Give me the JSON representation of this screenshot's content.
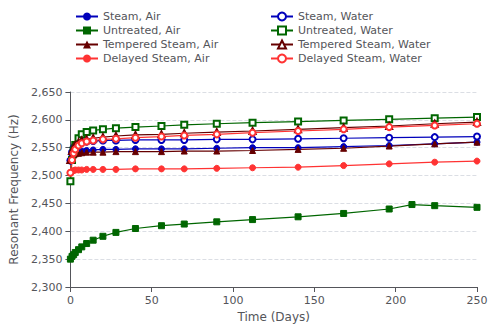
{
  "chart_data": {
    "type": "line",
    "x_label": "Time (Days)",
    "y_label": "Resonant Frequency (Hz)",
    "xlim": [
      0,
      250
    ],
    "ylim": [
      2300,
      2650
    ],
    "xticks": [
      0,
      50,
      100,
      150,
      200,
      250
    ],
    "yticks": [
      2300,
      2350,
      2400,
      2450,
      2500,
      2550,
      2600,
      2650
    ],
    "grid": true,
    "legend": "top",
    "series": [
      {
        "name": "Steam, Air",
        "color": "#0000bb",
        "marker": "circle",
        "x": [
          0,
          1,
          2,
          3,
          5,
          7,
          10,
          14,
          20,
          28,
          40,
          56,
          70,
          90,
          112,
          140,
          168,
          196,
          224,
          250
        ],
        "values": [
          2527,
          2535,
          2538,
          2540,
          2542,
          2544,
          2545,
          2546,
          2547,
          2547,
          2548,
          2548,
          2548,
          2549,
          2550,
          2550,
          2552,
          2554,
          2557,
          2560
        ]
      },
      {
        "name": "Untreated, Air",
        "color": "#006600",
        "marker": "square",
        "x": [
          0,
          1,
          2,
          3,
          5,
          7,
          10,
          14,
          20,
          28,
          40,
          56,
          70,
          90,
          112,
          140,
          168,
          196,
          210,
          224,
          250
        ],
        "values": [
          2350,
          2355,
          2358,
          2362,
          2367,
          2372,
          2378,
          2384,
          2391,
          2398,
          2405,
          2410,
          2413,
          2417,
          2421,
          2426,
          2432,
          2440,
          2448,
          2446,
          2443
        ]
      },
      {
        "name": "Tempered Steam, Air",
        "color": "#660000",
        "marker": "triangle",
        "x": [
          0,
          1,
          2,
          3,
          5,
          7,
          10,
          14,
          20,
          28,
          40,
          56,
          70,
          90,
          112,
          140,
          168,
          196,
          224,
          250
        ],
        "values": [
          2528,
          2534,
          2537,
          2539,
          2540,
          2541,
          2542,
          2542,
          2542,
          2543,
          2543,
          2543,
          2544,
          2544,
          2545,
          2547,
          2549,
          2553,
          2557,
          2560
        ]
      },
      {
        "name": "Delayed Steam, Air",
        "color": "#ff3333",
        "marker": "circle",
        "x": [
          0,
          1,
          2,
          3,
          5,
          7,
          10,
          14,
          20,
          28,
          40,
          56,
          70,
          90,
          112,
          140,
          168,
          196,
          224,
          250
        ],
        "values": [
          2505,
          2508,
          2509,
          2510,
          2510,
          2510,
          2511,
          2511,
          2511,
          2511,
          2512,
          2512,
          2512,
          2513,
          2514,
          2515,
          2518,
          2521,
          2524,
          2526
        ]
      },
      {
        "name": "Steam, Water",
        "color": "#0000bb",
        "marker": "circle_open",
        "x": [
          0,
          1,
          2,
          3,
          5,
          7,
          10,
          14,
          20,
          28,
          40,
          56,
          70,
          90,
          112,
          140,
          168,
          196,
          224,
          250
        ],
        "values": [
          2527,
          2542,
          2550,
          2554,
          2558,
          2560,
          2561,
          2562,
          2563,
          2563,
          2564,
          2564,
          2564,
          2565,
          2565,
          2566,
          2567,
          2568,
          2569,
          2570
        ]
      },
      {
        "name": "Untreated, Water",
        "color": "#006600",
        "marker": "square_open",
        "x": [
          0,
          1,
          2,
          3,
          5,
          7,
          10,
          14,
          20,
          28,
          40,
          56,
          70,
          90,
          112,
          140,
          168,
          196,
          224,
          250
        ],
        "values": [
          2490,
          2528,
          2545,
          2555,
          2567,
          2574,
          2578,
          2581,
          2583,
          2585,
          2587,
          2589,
          2591,
          2593,
          2595,
          2597,
          2599,
          2601,
          2603,
          2605
        ]
      },
      {
        "name": "Tempered Steam, Water",
        "color": "#660000",
        "marker": "triangle_open",
        "x": [
          0,
          1,
          2,
          3,
          5,
          7,
          10,
          14,
          20,
          28,
          40,
          56,
          70,
          90,
          112,
          140,
          168,
          196,
          224,
          250
        ],
        "values": [
          2528,
          2544,
          2551,
          2555,
          2560,
          2563,
          2565,
          2567,
          2569,
          2571,
          2573,
          2574,
          2576,
          2578,
          2580,
          2583,
          2586,
          2589,
          2593,
          2596
        ]
      },
      {
        "name": "Delayed Steam, Water",
        "color": "#ff3333",
        "marker": "circle_open",
        "x": [
          0,
          1,
          2,
          3,
          5,
          7,
          10,
          14,
          20,
          28,
          40,
          56,
          70,
          90,
          112,
          140,
          168,
          196,
          224,
          250
        ],
        "values": [
          2505,
          2528,
          2540,
          2547,
          2554,
          2558,
          2561,
          2563,
          2565,
          2566,
          2568,
          2570,
          2572,
          2574,
          2577,
          2580,
          2583,
          2587,
          2590,
          2593
        ]
      }
    ]
  }
}
